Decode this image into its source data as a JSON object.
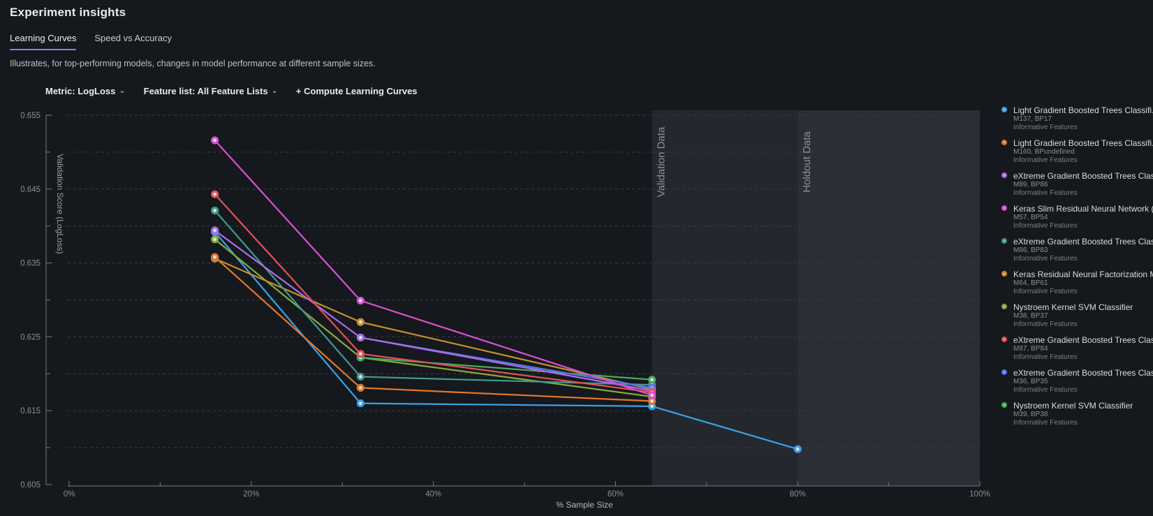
{
  "header": {
    "title": "Experiment insights"
  },
  "tabs": [
    {
      "label": "Learning Curves",
      "active": true
    },
    {
      "label": "Speed vs Accuracy",
      "active": false
    }
  ],
  "description": "Illustrates, for top-performing models, changes in model performance at different sample sizes.",
  "controls": {
    "metric_label": "Metric: LogLoss",
    "feature_list_label": "Feature list: All Feature Lists",
    "compute_label": "+ Compute Learning Curves",
    "chevron": "⌄"
  },
  "chart_data": {
    "type": "line",
    "xlabel": "% Sample Size",
    "ylabel": "Validation Score (LogLoss)",
    "x_range_pct": [
      0,
      100
    ],
    "y_range": [
      0.605,
      0.655
    ],
    "x_major_ticks_pct": [
      0,
      20,
      40,
      60,
      80,
      100
    ],
    "x_minor_ticks_pct": [
      10,
      30,
      50,
      70,
      90
    ],
    "y_major_ticks": [
      0.655,
      0.645,
      0.635,
      0.625,
      0.615,
      0.605
    ],
    "grid_step": 0.005,
    "grid": true,
    "legend_position": "right",
    "bands": [
      {
        "label": "Validation Data",
        "from_pct": 64,
        "to_pct": 80,
        "color": "#24272d"
      },
      {
        "label": "Holdout Data",
        "from_pct": 80,
        "to_pct": 100,
        "color": "#2b2e34"
      }
    ],
    "z_order": [
      "M137",
      "M38",
      "M64",
      "M86",
      "M39",
      "M36",
      "M160",
      "M89",
      "M87",
      "M57"
    ],
    "series": [
      {
        "id": "M137",
        "name": "Light Gradient Boosted Trees Classifi.",
        "color": "#3aa0e8",
        "points": [
          [
            16,
            0.6392
          ],
          [
            32,
            0.616
          ],
          [
            64,
            0.6156
          ],
          [
            80,
            0.6098
          ]
        ]
      },
      {
        "id": "M160",
        "name": "Light Gradient Boosted Trees Classifi.",
        "color": "#e0762c",
        "points": [
          [
            16,
            0.6358
          ],
          [
            32,
            0.6181
          ],
          [
            64,
            0.6163
          ]
        ]
      },
      {
        "id": "M89",
        "name": "eXtreme Gradient Boosted Trees Clas",
        "color": "#a96de8",
        "points": [
          [
            16,
            0.6394
          ],
          [
            32,
            0.6249
          ],
          [
            64,
            0.6177
          ]
        ]
      },
      {
        "id": "M57",
        "name": "Keras Slim Residual Neural Network (",
        "color": "#d94fd2",
        "points": [
          [
            16,
            0.6516
          ],
          [
            32,
            0.6299
          ],
          [
            64,
            0.6171
          ]
        ]
      },
      {
        "id": "M86",
        "name": "eXtreme Gradient Boosted Trees Clas",
        "color": "#43968f",
        "points": [
          [
            16,
            0.6421
          ],
          [
            32,
            0.6196
          ],
          [
            64,
            0.6185
          ]
        ]
      },
      {
        "id": "M64",
        "name": "Keras Residual Neural Factorization M",
        "color": "#c28f2e",
        "points": [
          [
            16,
            0.6356
          ],
          [
            32,
            0.627
          ],
          [
            64,
            0.6179
          ]
        ]
      },
      {
        "id": "M38",
        "name": "Nystroem Kernel SVM Classifier",
        "color": "#85a93d",
        "points": [
          [
            16,
            0.6382
          ],
          [
            32,
            0.6222
          ],
          [
            64,
            0.6169
          ]
        ]
      },
      {
        "id": "M87",
        "name": "eXtreme Gradient Boosted Trees Clas",
        "color": "#e25157",
        "points": [
          [
            16,
            0.6443
          ],
          [
            32,
            0.6227
          ],
          [
            64,
            0.6175
          ]
        ]
      },
      {
        "id": "M36",
        "name": "eXtreme Gradient Boosted Trees Clas",
        "color": "#5277e8",
        "points": [
          [
            32,
            0.6249
          ],
          [
            64,
            0.6181
          ]
        ]
      },
      {
        "id": "M39",
        "name": "Nystroem Kernel SVM Classifier",
        "color": "#4aa95e",
        "points": [
          [
            32,
            0.6222
          ],
          [
            64,
            0.6192
          ]
        ]
      }
    ]
  },
  "legend": {
    "items": [
      {
        "id": "M137",
        "color": "#3aa0e8",
        "label": "Light Gradient Boosted Trees Classifi.",
        "sub": "M137, BP17",
        "features": "Informative Features"
      },
      {
        "id": "M160",
        "color": "#e0762c",
        "label": "Light Gradient Boosted Trees Classifi.",
        "sub": "M160, BPundefined",
        "features": "Informative Features"
      },
      {
        "id": "M89",
        "color": "#a96de8",
        "label": "eXtreme Gradient Boosted Trees Clas",
        "sub": "M89, BP86",
        "features": "Informative Features"
      },
      {
        "id": "M57",
        "color": "#d94fd2",
        "label": "Keras Slim Residual Neural Network (",
        "sub": "M57, BP54",
        "features": "Informative Features"
      },
      {
        "id": "M86",
        "color": "#43968f",
        "label": "eXtreme Gradient Boosted Trees Clas",
        "sub": "M86, BP83",
        "features": "Informative Features"
      },
      {
        "id": "M64",
        "color": "#c28f2e",
        "label": "Keras Residual Neural Factorization M",
        "sub": "M64, BP61",
        "features": "Informative Features"
      },
      {
        "id": "M38",
        "color": "#85a93d",
        "label": "Nystroem Kernel SVM Classifier",
        "sub": "M38, BP37",
        "features": "Informative Features"
      },
      {
        "id": "M87",
        "color": "#e25157",
        "label": "eXtreme Gradient Boosted Trees Clas",
        "sub": "M87, BP84",
        "features": "Informative Features"
      },
      {
        "id": "M36",
        "color": "#5277e8",
        "label": "eXtreme Gradient Boosted Trees Clas",
        "sub": "M36, BP35",
        "features": "Informative Features"
      },
      {
        "id": "M39",
        "color": "#4aa95e",
        "label": "Nystroem Kernel SVM Classifier",
        "sub": "M39, BP38",
        "features": "Informative Features"
      }
    ]
  }
}
